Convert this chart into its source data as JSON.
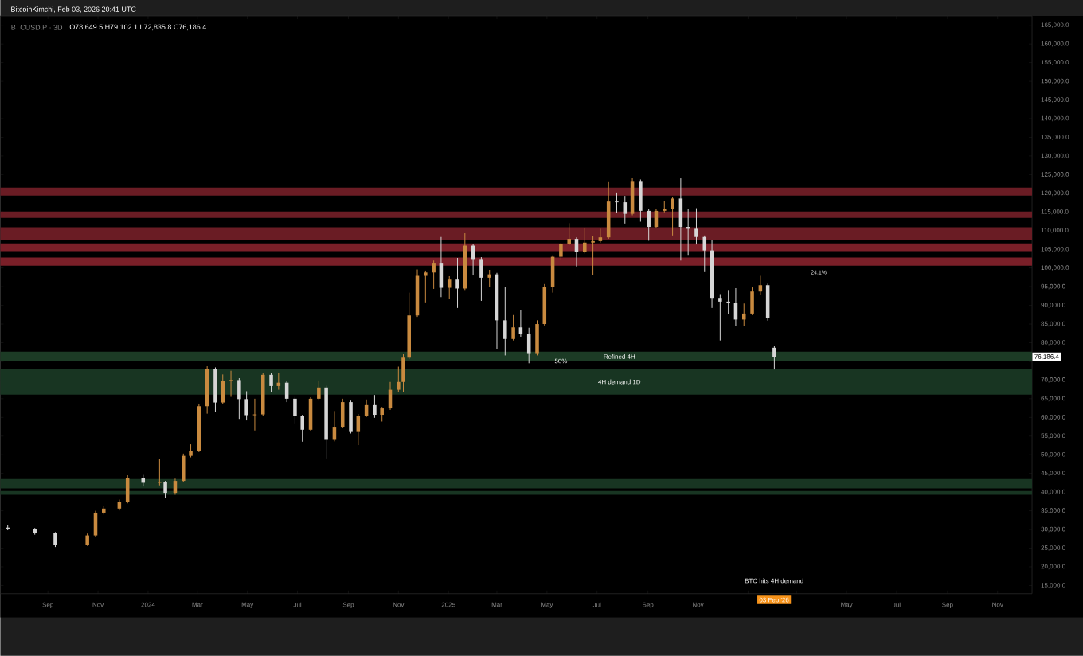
{
  "chart_data": {
    "type": "candlestick",
    "title": "BTCUSD.P · 3D",
    "subtitle": "O78,649.5 H79,102.1 L72,835.8 C76,186.4",
    "x": [
      "2023-07-14",
      "2023-08-16",
      "2023-09-10",
      "2023-10-19",
      "2023-10-29",
      "2023-11-08",
      "2023-11-27",
      "2023-12-07",
      "2023-12-26",
      "2024-01-15",
      "2024-01-22",
      "2024-02-03",
      "2024-02-13",
      "2024-02-22",
      "2024-03-03",
      "2024-03-13",
      "2024-03-23",
      "2024-04-01",
      "2024-04-11",
      "2024-04-21",
      "2024-04-30",
      "2024-05-10",
      "2024-05-20",
      "2024-05-30",
      "2024-06-08",
      "2024-06-18",
      "2024-06-28",
      "2024-07-07",
      "2024-07-17",
      "2024-07-27",
      "2024-08-05",
      "2024-08-15",
      "2024-08-25",
      "2024-09-04",
      "2024-09-13",
      "2024-09-23",
      "2024-10-03",
      "2024-10-12",
      "2024-10-22",
      "2024-11-01",
      "2024-11-07",
      "2024-11-14",
      "2024-11-24",
      "2024-12-04",
      "2024-12-14",
      "2024-12-23",
      "2025-01-02",
      "2025-01-12",
      "2025-01-21",
      "2025-01-31",
      "2025-02-10",
      "2025-02-20",
      "2025-03-01",
      "2025-03-11",
      "2025-03-21",
      "2025-03-30",
      "2025-04-09",
      "2025-04-19",
      "2025-04-28",
      "2025-05-08",
      "2025-05-18",
      "2025-05-28",
      "2025-06-06",
      "2025-06-16",
      "2025-06-26",
      "2025-07-05",
      "2025-07-15",
      "2025-07-25",
      "2025-08-04",
      "2025-08-13",
      "2025-08-23",
      "2025-09-02",
      "2025-09-11",
      "2025-09-21",
      "2025-10-01",
      "2025-10-11",
      "2025-10-20",
      "2025-10-30",
      "2025-11-09",
      "2025-11-18",
      "2025-11-28",
      "2025-12-08",
      "2025-12-17",
      "2025-12-27",
      "2026-01-06",
      "2026-01-16",
      "2026-01-25",
      "2026-02-02"
    ],
    "ohlc": [
      [
        30500,
        31200,
        29800,
        30200
      ],
      [
        30200,
        30400,
        28600,
        29000
      ],
      [
        29000,
        29300,
        25300,
        25900
      ],
      [
        25900,
        28900,
        25600,
        28400
      ],
      [
        28400,
        35000,
        28100,
        34500
      ],
      [
        34500,
        36300,
        34000,
        35600
      ],
      [
        35600,
        38000,
        35100,
        37300
      ],
      [
        37300,
        44500,
        37000,
        43800
      ],
      [
        43800,
        44600,
        41500,
        42500
      ],
      [
        42500,
        48900,
        41800,
        42600
      ],
      [
        42600,
        43000,
        38500,
        39800
      ],
      [
        39800,
        43600,
        39300,
        43000
      ],
      [
        43000,
        50300,
        42600,
        49700
      ],
      [
        49700,
        52800,
        49300,
        51000
      ],
      [
        51000,
        63700,
        50700,
        63000
      ],
      [
        63000,
        73700,
        61000,
        73000
      ],
      [
        73000,
        73400,
        61500,
        64000
      ],
      [
        64000,
        71500,
        63500,
        69700
      ],
      [
        69700,
        72500,
        65500,
        70000
      ],
      [
        70000,
        70500,
        59600,
        64900
      ],
      [
        64900,
        67000,
        59200,
        60600
      ],
      [
        60600,
        65000,
        56500,
        60800
      ],
      [
        60800,
        71900,
        60400,
        71400
      ],
      [
        71400,
        72000,
        66700,
        68400
      ],
      [
        68400,
        71900,
        67400,
        69300
      ],
      [
        69300,
        69800,
        64100,
        65000
      ],
      [
        65000,
        65500,
        58400,
        60300
      ],
      [
        60300,
        60700,
        53500,
        56700
      ],
      [
        56700,
        65400,
        56300,
        65000
      ],
      [
        65000,
        69900,
        64500,
        68000
      ],
      [
        68000,
        68500,
        49000,
        54000
      ],
      [
        54000,
        61700,
        53600,
        57500
      ],
      [
        57500,
        65000,
        57100,
        64100
      ],
      [
        64100,
        64500,
        55700,
        56100
      ],
      [
        56100,
        60900,
        52600,
        60500
      ],
      [
        60500,
        64800,
        60100,
        63300
      ],
      [
        63300,
        66000,
        59900,
        60700
      ],
      [
        60700,
        62800,
        58900,
        62400
      ],
      [
        62400,
        69500,
        62000,
        67400
      ],
      [
        67400,
        73600,
        66800,
        69500
      ],
      [
        69500,
        76900,
        66800,
        76000
      ],
      [
        76000,
        93400,
        75600,
        87300
      ],
      [
        87300,
        99600,
        86900,
        97900
      ],
      [
        97900,
        99300,
        90800,
        98800
      ],
      [
        98800,
        102000,
        94400,
        101400
      ],
      [
        101400,
        108300,
        92200,
        94700
      ],
      [
        94700,
        97800,
        91800,
        96900
      ],
      [
        96900,
        102700,
        89300,
        94500
      ],
      [
        94500,
        109300,
        94100,
        106000
      ],
      [
        106000,
        106500,
        98000,
        102400
      ],
      [
        102400,
        102900,
        91200,
        97400
      ],
      [
        97400,
        99500,
        94900,
        98300
      ],
      [
        98300,
        98700,
        78200,
        86000
      ],
      [
        86000,
        95000,
        76600,
        81000
      ],
      [
        81000,
        87400,
        80600,
        84100
      ],
      [
        84100,
        88700,
        81600,
        82400
      ],
      [
        82400,
        84000,
        74500,
        77000
      ],
      [
        77000,
        86000,
        76600,
        85000
      ],
      [
        85000,
        95700,
        84600,
        95000
      ],
      [
        95000,
        103400,
        93400,
        103000
      ],
      [
        103000,
        106700,
        102200,
        106500
      ],
      [
        106500,
        112000,
        106100,
        107800
      ],
      [
        107800,
        108200,
        100400,
        104300
      ],
      [
        104300,
        110600,
        103900,
        106800
      ],
      [
        106800,
        108500,
        98200,
        107200
      ],
      [
        107200,
        110500,
        106800,
        108200
      ],
      [
        108200,
        123200,
        107800,
        117800
      ],
      [
        117800,
        120200,
        114700,
        117600
      ],
      [
        117600,
        119300,
        111900,
        114500
      ],
      [
        114500,
        124100,
        114100,
        123300
      ],
      [
        123300,
        123700,
        112400,
        115300
      ],
      [
        115300,
        115700,
        107300,
        111000
      ],
      [
        111000,
        115800,
        110600,
        115300
      ],
      [
        115300,
        118000,
        114900,
        115700
      ],
      [
        115700,
        119000,
        108700,
        118600
      ],
      [
        118600,
        124000,
        102000,
        111000
      ],
      [
        111000,
        115900,
        103500,
        110500
      ],
      [
        110500,
        116000,
        106300,
        108300
      ],
      [
        108300,
        108700,
        98900,
        104700
      ],
      [
        104700,
        107500,
        89300,
        92000
      ],
      [
        92000,
        93000,
        80600,
        91000
      ],
      [
        91000,
        94100,
        87700,
        90600
      ],
      [
        90600,
        94600,
        84400,
        86200
      ],
      [
        86200,
        90500,
        84400,
        87800
      ],
      [
        87800,
        94800,
        87400,
        93700
      ],
      [
        93700,
        97900,
        92800,
        95400
      ],
      [
        95400,
        95800,
        85900,
        86500
      ],
      [
        78649.5,
        79102.1,
        72835.8,
        76186.4
      ]
    ],
    "colors": [
      "#d6d6d6",
      "#d6d6d6",
      "#d6d6d6",
      "#c98a3f",
      "#c98a3f",
      "#c98a3f",
      "#c98a3f",
      "#c98a3f",
      "#d6d6d6",
      "#c98a3f",
      "#d6d6d6",
      "#c98a3f",
      "#c98a3f",
      "#c98a3f",
      "#c98a3f",
      "#c98a3f",
      "#d6d6d6",
      "#c98a3f",
      "#c98a3f",
      "#d6d6d6",
      "#d6d6d6",
      "#c98a3f",
      "#c98a3f",
      "#d6d6d6",
      "#c98a3f",
      "#d6d6d6",
      "#d6d6d6",
      "#d6d6d6",
      "#c98a3f",
      "#c98a3f",
      "#d6d6d6",
      "#c98a3f",
      "#c98a3f",
      "#d6d6d6",
      "#c98a3f",
      "#c98a3f",
      "#d6d6d6",
      "#c98a3f",
      "#c98a3f",
      "#c98a3f",
      "#c98a3f",
      "#c98a3f",
      "#c98a3f",
      "#c98a3f",
      "#c98a3f",
      "#d6d6d6",
      "#c98a3f",
      "#d6d6d6",
      "#c98a3f",
      "#d6d6d6",
      "#d6d6d6",
      "#c98a3f",
      "#d6d6d6",
      "#d6d6d6",
      "#c98a3f",
      "#d6d6d6",
      "#d6d6d6",
      "#c98a3f",
      "#c98a3f",
      "#c98a3f",
      "#c98a3f",
      "#c98a3f",
      "#d6d6d6",
      "#c98a3f",
      "#c98a3f",
      "#c98a3f",
      "#c98a3f",
      "#d6d6d6",
      "#d6d6d6",
      "#c98a3f",
      "#d6d6d6",
      "#d6d6d6",
      "#c98a3f",
      "#c98a3f",
      "#c98a3f",
      "#d6d6d6",
      "#d6d6d6",
      "#d6d6d6",
      "#d6d6d6",
      "#d6d6d6",
      "#d6d6d6",
      "#d6d6d6",
      "#d6d6d6",
      "#c98a3f",
      "#c98a3f",
      "#c98a3f",
      "#d6d6d6",
      "#d6d6d6"
    ],
    "xlim": [
      "2023-07-05",
      "2026-12-13"
    ],
    "xticks": [
      {
        "value": "2023-09-01",
        "label": "Sep"
      },
      {
        "value": "2023-11-01",
        "label": "Nov"
      },
      {
        "value": "2024-01-01",
        "label": "2024"
      },
      {
        "value": "2024-03-01",
        "label": "Mar"
      },
      {
        "value": "2024-05-01",
        "label": "May"
      },
      {
        "value": "2024-07-01",
        "label": "Jul"
      },
      {
        "value": "2024-09-01",
        "label": "Sep"
      },
      {
        "value": "2024-11-01",
        "label": "Nov"
      },
      {
        "value": "2025-01-01",
        "label": "2025"
      },
      {
        "value": "2025-03-01",
        "label": "Mar"
      },
      {
        "value": "2025-05-01",
        "label": "May"
      },
      {
        "value": "2025-07-01",
        "label": "Jul"
      },
      {
        "value": "2025-09-01",
        "label": "Sep"
      },
      {
        "value": "2025-11-01",
        "label": "Nov"
      },
      {
        "value": "2026-01-01",
        "label": null
      },
      {
        "value": "2026-03-01",
        "label": null
      },
      {
        "value": "2026-05-01",
        "label": "May"
      },
      {
        "value": "2026-07-01",
        "label": "Jul"
      },
      {
        "value": "2026-09-01",
        "label": "Sep"
      },
      {
        "value": "2026-11-01",
        "label": "Nov"
      }
    ],
    "ylim": [
      12800,
      167500
    ],
    "yticks": [
      {
        "value": 15000,
        "label": "15,000.0"
      },
      {
        "value": 20000,
        "label": "20,000.0"
      },
      {
        "value": 25000,
        "label": "25,000.0"
      },
      {
        "value": 30000,
        "label": "30,000.0"
      },
      {
        "value": 35000,
        "label": "35,000.0"
      },
      {
        "value": 40000,
        "label": "40,000.0"
      },
      {
        "value": 45000,
        "label": "45,000.0"
      },
      {
        "value": 50000,
        "label": "50,000.0"
      },
      {
        "value": 55000,
        "label": "55,000.0"
      },
      {
        "value": 60000,
        "label": "60,000.0"
      },
      {
        "value": 65000,
        "label": "65,000.0"
      },
      {
        "value": 70000,
        "label": "70,000.0"
      },
      {
        "value": 75000,
        "label": null
      },
      {
        "value": 80000,
        "label": "80,000.0"
      },
      {
        "value": 85000,
        "label": "85,000.0"
      },
      {
        "value": 90000,
        "label": "90,000.0"
      },
      {
        "value": 95000,
        "label": "95,000.0"
      },
      {
        "value": 100000,
        "label": "100,000.0"
      },
      {
        "value": 105000,
        "label": "105,000.0"
      },
      {
        "value": 110000,
        "label": "110,000.0"
      },
      {
        "value": 115000,
        "label": "115,000.0"
      },
      {
        "value": 120000,
        "label": "120,000.0"
      },
      {
        "value": 125000,
        "label": "125,000.0"
      },
      {
        "value": 130000,
        "label": "130,000.0"
      },
      {
        "value": 135000,
        "label": "135,000.0"
      },
      {
        "value": 140000,
        "label": "140,000.0"
      },
      {
        "value": 145000,
        "label": "145,000.0"
      },
      {
        "value": 150000,
        "label": "150,000.0"
      },
      {
        "value": 155000,
        "label": "155,000.0"
      },
      {
        "value": 160000,
        "label": "160,000.0"
      },
      {
        "value": 165000,
        "label": "165,000.0"
      }
    ],
    "bands": [
      {
        "axis": "y",
        "from": 75000,
        "to": 77600,
        "label": "Refined 4H",
        "color": "#1c3b25"
      },
      {
        "axis": "y",
        "from": 66100,
        "to": 73000,
        "label": "4H demand 1D",
        "color": "#183522"
      },
      {
        "axis": "y",
        "from": 41000,
        "to": 43500,
        "color": "#183522"
      },
      {
        "axis": "y",
        "from": 39300,
        "to": 40300,
        "color": "#183522"
      },
      {
        "axis": "y",
        "from": 119400,
        "to": 121500,
        "color": "#6a1c24"
      },
      {
        "axis": "y",
        "from": 113400,
        "to": 115100,
        "color": "#6a1c24"
      },
      {
        "axis": "y",
        "from": 107400,
        "to": 110900,
        "color": "#6a1c24"
      },
      {
        "axis": "y",
        "from": 104500,
        "to": 106600,
        "color": "#7a1f28"
      },
      {
        "axis": "y",
        "from": 100600,
        "to": 102800,
        "color": "#7a1f28"
      }
    ],
    "annotations": [
      "BitcoinKimchi, Feb 03, 2026 20:41 UTC",
      "24.1%",
      "BTC hits 4H demand",
      "03 Feb '26",
      {
        "text": "50%",
        "x": "2025-05-18",
        "y": 74200
      },
      {
        "text": "76,186.4",
        "y": 76186.4
      }
    ]
  }
}
